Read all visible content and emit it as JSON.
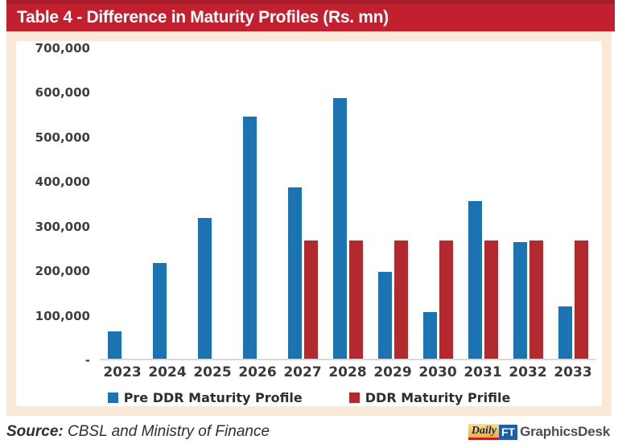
{
  "header": {
    "title": "Table 4 - Difference in Maturity Profiles (Rs. mn)",
    "background": "#C2202F",
    "top_strip": "#A81B28"
  },
  "panel": {
    "background": "#FBE9D7"
  },
  "footer": {
    "source_label": "Source:",
    "source_text": " CBSL and Ministry of Finance",
    "logo": {
      "daily": "Daily",
      "ft": "FT",
      "graphics": "GraphicsDesk"
    }
  },
  "chart_data": {
    "type": "bar",
    "title": "Table 4 - Difference in Maturity Profiles (Rs. mn)",
    "categories": [
      "2023",
      "2024",
      "2025",
      "2026",
      "2027",
      "2028",
      "2029",
      "2030",
      "2031",
      "2032",
      "2033"
    ],
    "series": [
      {
        "name": "Pre DDR Maturity Profile",
        "color": "#1B73B2",
        "values": [
          62000,
          215000,
          318000,
          545000,
          387000,
          587000,
          195000,
          106000,
          355000,
          263000,
          118000
        ]
      },
      {
        "name": "DDR Maturity Prifile",
        "color": "#B2292E",
        "values": [
          0,
          0,
          0,
          0,
          266000,
          266000,
          266000,
          266000,
          266000,
          266000,
          266000
        ]
      }
    ],
    "xlabel": "",
    "ylabel": "",
    "ylim": [
      0,
      700000
    ],
    "ytick_step": 100000,
    "ytick_labels": [
      "700,000",
      "600,000",
      "500,000",
      "400,000",
      "300,000",
      "200,000",
      "100,000",
      "-"
    ],
    "grid": false,
    "legend_position": "bottom",
    "axis_line_color": "#D9D9D9"
  }
}
